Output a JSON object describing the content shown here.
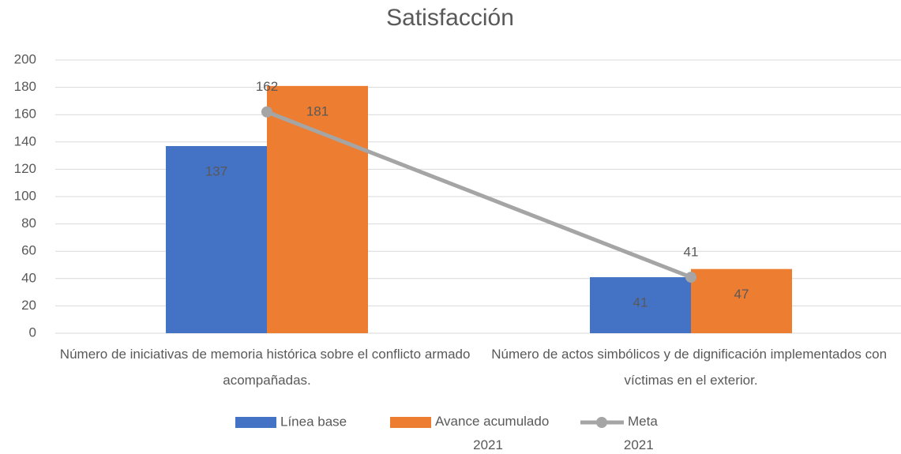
{
  "chart_data": {
    "type": "bar",
    "title": "Satisfacción",
    "categories": [
      "Número de iniciativas de memoria histórica sobre el conflicto armado acompañadas.",
      "Número de actos simbólicos y de dignificación implementados con víctimas en el exterior."
    ],
    "series": [
      {
        "name": "Línea base",
        "color": "#4472c4",
        "values": [
          137,
          41
        ]
      },
      {
        "name": "Avance acumulado 2021",
        "color": "#ed7d31",
        "values": [
          181,
          47
        ]
      },
      {
        "name": "Meta 2021",
        "color": "#a5a5a5",
        "type": "line",
        "values": [
          162,
          41
        ]
      }
    ],
    "ylim": [
      0,
      200
    ],
    "yticks": [
      0,
      20,
      40,
      60,
      80,
      100,
      120,
      140,
      160,
      180,
      200
    ],
    "grid": true,
    "legend": "bottom"
  }
}
